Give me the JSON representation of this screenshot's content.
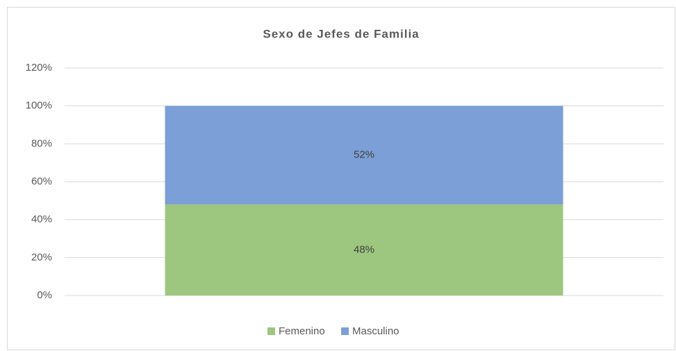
{
  "chart_data": {
    "type": "stacked_bar",
    "title": "Sexo de Jefes de Familia",
    "categories": [
      null
    ],
    "series": [
      {
        "name": "Femenino",
        "color": "#9dc67e",
        "values": [
          48
        ],
        "value_labels": [
          "48%"
        ]
      },
      {
        "name": "Masculino",
        "color": "#7b9fd6",
        "values": [
          52
        ],
        "value_labels": [
          "52%"
        ]
      }
    ],
    "ylim": [
      0,
      120
    ],
    "yticks": [
      {
        "value": 0,
        "label": "0%"
      },
      {
        "value": 20,
        "label": "20%"
      },
      {
        "value": 40,
        "label": "40%"
      },
      {
        "value": 60,
        "label": "60%"
      },
      {
        "value": 80,
        "label": "80%"
      },
      {
        "value": 100,
        "label": "100%"
      },
      {
        "value": 120,
        "label": "120%"
      }
    ],
    "grid": true,
    "legend": "bottom"
  }
}
